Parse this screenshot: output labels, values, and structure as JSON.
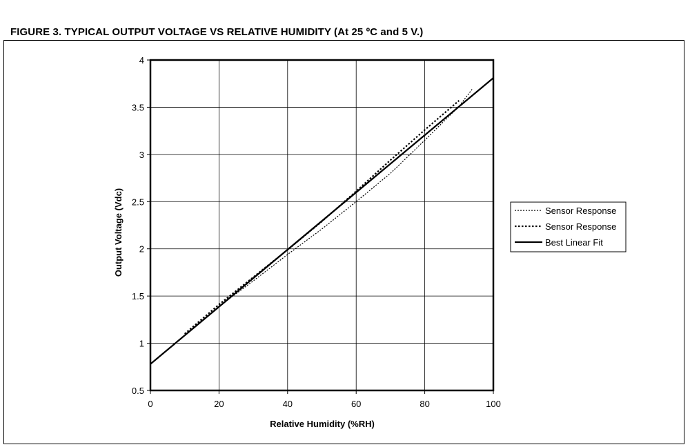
{
  "figure_title": "FIGURE 3. TYPICAL OUTPUT VOLTAGE VS RELATIVE HUMIDITY (At 25 ºC and 5 V.)",
  "chart_data": {
    "type": "line",
    "title": "",
    "xlabel": "Relative Humidity (%RH)",
    "ylabel": "Output Voltage (Vdc)",
    "xlim": [
      0,
      100
    ],
    "ylim": [
      0.5,
      4
    ],
    "x_ticks": [
      0,
      20,
      40,
      60,
      80,
      100
    ],
    "x_tick_labels": [
      "0",
      "20",
      "40",
      "60",
      "80",
      "100"
    ],
    "y_ticks": [
      0.5,
      1,
      1.5,
      2,
      2.5,
      3,
      3.5,
      4
    ],
    "y_tick_labels": [
      "0.5",
      "1",
      "1.5",
      "2",
      "2.5",
      "3",
      "3.5",
      "4"
    ],
    "grid": true,
    "legend_position": "right",
    "series": [
      {
        "name": "Sensor Response",
        "style": "dotted-thin",
        "color": "#000000",
        "x": [
          10,
          20,
          30,
          40,
          50,
          60,
          70,
          80,
          90,
          94
        ],
        "y": [
          1.08,
          1.39,
          1.66,
          1.94,
          2.21,
          2.5,
          2.8,
          3.15,
          3.51,
          3.7
        ]
      },
      {
        "name": "Sensor Response",
        "style": "dotted-thick",
        "color": "#000000",
        "x": [
          10,
          20,
          30,
          40,
          50,
          60,
          70,
          80,
          90
        ],
        "y": [
          1.1,
          1.41,
          1.7,
          1.99,
          2.29,
          2.61,
          2.94,
          3.26,
          3.57
        ]
      },
      {
        "name": "Best Linear Fit",
        "style": "solid",
        "color": "#000000",
        "x": [
          0,
          100
        ],
        "y": [
          0.78,
          3.81
        ]
      }
    ]
  }
}
